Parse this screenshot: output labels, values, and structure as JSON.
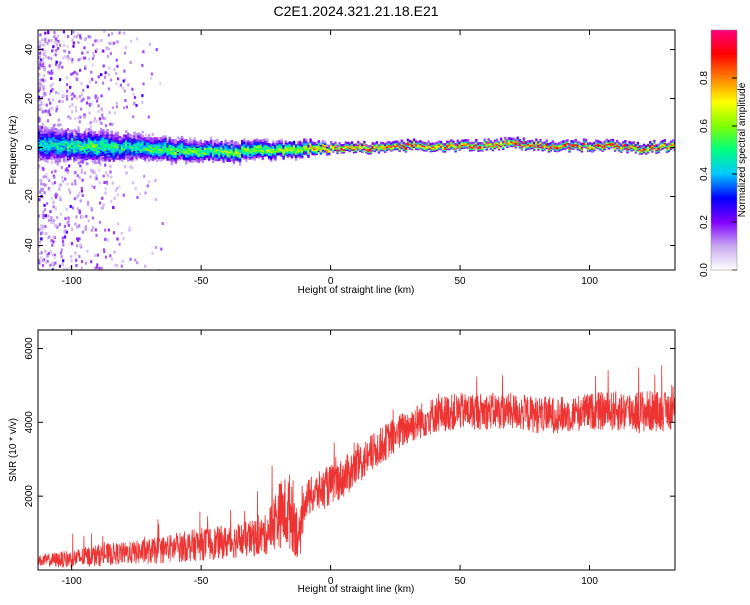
{
  "title": "C2E1.2024.321.21.18.E21",
  "chart_data": [
    {
      "type": "heatmap",
      "xlabel": "Height of straight line (km)",
      "ylabel": "Frequency (Hz)",
      "xlim": [
        -113,
        133
      ],
      "ylim": [
        -50,
        48
      ],
      "xticks": [
        -100,
        -50,
        0,
        50,
        100
      ],
      "xtick_labels": [
        "-100",
        "-50",
        "0",
        "50",
        "100"
      ],
      "yticks": [
        -40,
        -20,
        0,
        20,
        40
      ],
      "ytick_labels": [
        "-40",
        "-20",
        "0",
        "20",
        "40"
      ],
      "colorbar": {
        "label": "Normalized spectral amplitude",
        "range": [
          0,
          1
        ],
        "ticks": [
          0.0,
          0.2,
          0.4,
          0.6,
          0.8
        ],
        "tick_labels": [
          "0.0",
          "0.2",
          "0.4",
          "0.6",
          "0.8"
        ],
        "colormap": [
          "#ffffff",
          "#c8a8f0",
          "#8000ff",
          "#0000ff",
          "#00c8ff",
          "#00ff80",
          "#80ff00",
          "#ffff00",
          "#ff8000",
          "#ff0000",
          "#ff0080"
        ]
      },
      "ridge": {
        "x": [
          -113,
          -100,
          -90,
          -80,
          -70,
          -60,
          -50,
          -40,
          -30,
          -20,
          -10,
          0,
          10,
          20,
          30,
          40,
          50,
          60,
          70,
          80,
          90,
          100,
          110,
          120,
          133
        ],
        "freq": [
          2,
          1,
          1,
          0,
          0,
          -1,
          -1,
          -2,
          -1,
          -1,
          0,
          0,
          0,
          0,
          1,
          1,
          1,
          1,
          2,
          1,
          1,
          1,
          1,
          0,
          1
        ],
        "peak_amplitude": [
          0.45,
          0.5,
          0.55,
          0.5,
          0.55,
          0.55,
          0.6,
          0.6,
          0.6,
          0.65,
          0.7,
          0.9,
          0.9,
          0.9,
          0.9,
          0.9,
          0.9,
          0.9,
          0.9,
          0.9,
          0.9,
          0.9,
          0.9,
          0.9,
          0.9
        ],
        "band_halfwidth_hz": [
          9,
          8,
          8,
          7,
          6,
          6,
          5,
          5,
          5,
          4,
          4,
          2,
          2,
          2,
          2,
          2,
          2,
          2,
          2,
          2,
          2,
          2,
          2,
          2,
          2
        ]
      },
      "scatter_noise_extent_x": [
        -113,
        -65
      ]
    },
    {
      "type": "line",
      "xlabel": "Height of straight line (km)",
      "ylabel": "SNR (10 * v/v)",
      "xlim": [
        -113,
        133
      ],
      "ylim": [
        0,
        6500
      ],
      "xticks": [
        -100,
        -50,
        0,
        50,
        100
      ],
      "xtick_labels": [
        "-100",
        "-50",
        "0",
        "50",
        "100"
      ],
      "yticks": [
        2000,
        4000,
        6000
      ],
      "ytick_labels": [
        "2000",
        "4000",
        "6000"
      ],
      "series": [
        {
          "color": "#ee3333",
          "envelope_x": [
            -113,
            -100,
            -90,
            -80,
            -70,
            -60,
            -50,
            -40,
            -30,
            -25,
            -20,
            -15,
            -12,
            -10,
            -5,
            0,
            5,
            10,
            20,
            30,
            40,
            50,
            60,
            70,
            80,
            90,
            100,
            110,
            120,
            133
          ],
          "envelope_mean": [
            250,
            300,
            400,
            450,
            500,
            600,
            700,
            750,
            850,
            950,
            1500,
            1600,
            800,
            1900,
            2100,
            2300,
            2500,
            2800,
            3400,
            3900,
            4200,
            4300,
            4300,
            4300,
            4200,
            4200,
            4300,
            4300,
            4300,
            4300
          ],
          "envelope_noise": [
            150,
            250,
            300,
            300,
            350,
            400,
            450,
            450,
            500,
            550,
            900,
            1100,
            600,
            500,
            550,
            550,
            550,
            550,
            500,
            500,
            500,
            500,
            500,
            500,
            500,
            500,
            500,
            550,
            600,
            500
          ]
        }
      ]
    }
  ]
}
